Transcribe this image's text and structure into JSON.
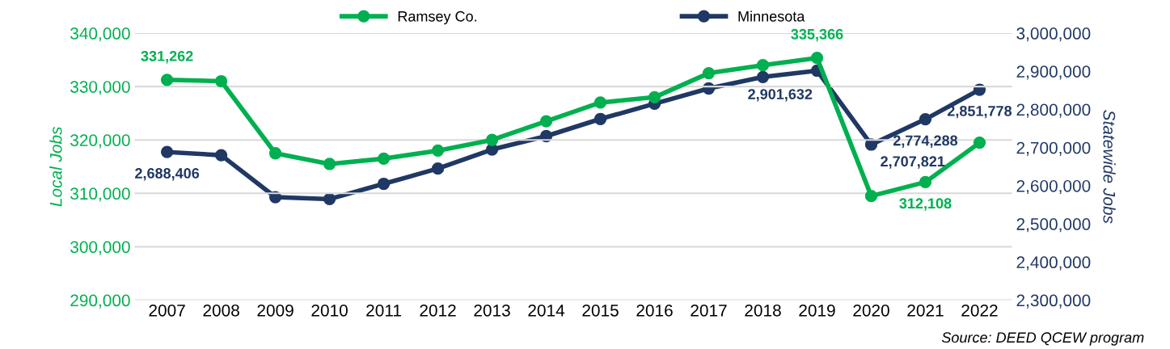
{
  "chart_data": {
    "type": "line",
    "categories": [
      "2007",
      "2008",
      "2009",
      "2010",
      "2011",
      "2012",
      "2013",
      "2014",
      "2015",
      "2016",
      "2017",
      "2018",
      "2019",
      "2020",
      "2021",
      "2022"
    ],
    "series": [
      {
        "name": "Ramsey Co.",
        "color": "#00b050",
        "values": [
          331262,
          331000,
          317500,
          315500,
          316500,
          318000,
          320000,
          323500,
          327000,
          328000,
          332500,
          334000,
          335366,
          309500,
          312108,
          319500
        ],
        "value_labels": [
          "331,262",
          null,
          null,
          null,
          null,
          null,
          null,
          null,
          null,
          null,
          null,
          null,
          "335,366",
          null,
          "312,108",
          null
        ]
      },
      {
        "name": "Minnesota",
        "color": "#203864",
        "axis": "y2",
        "values": [
          2688406,
          2680000,
          2570000,
          2565000,
          2605000,
          2645000,
          2695000,
          2730000,
          2775000,
          2815000,
          2855000,
          2885000,
          2901632,
          2707821,
          2774288,
          2851778
        ],
        "value_labels": [
          "2,688,406",
          null,
          null,
          null,
          null,
          null,
          null,
          null,
          null,
          null,
          null,
          null,
          "2,901,632",
          "2,707,821",
          "2,774,288",
          "2,851,778"
        ]
      }
    ],
    "ylabel": "Local Jobs",
    "y2label": "Statewide Jobs",
    "ylim": [
      290000,
      340000
    ],
    "yticks": [
      {
        "value": 290000,
        "label": "290,000"
      },
      {
        "value": 300000,
        "label": "300,000"
      },
      {
        "value": 310000,
        "label": "310,000"
      },
      {
        "value": 320000,
        "label": "320,000"
      },
      {
        "value": 330000,
        "label": "330,000"
      },
      {
        "value": 340000,
        "label": "340,000"
      }
    ],
    "y2lim": [
      2300000,
      3000000
    ],
    "y2ticks": [
      {
        "value": 2300000,
        "label": "2,300,000"
      },
      {
        "value": 2400000,
        "label": "2,400,000"
      },
      {
        "value": 2500000,
        "label": "2,500,000"
      },
      {
        "value": 2600000,
        "label": "2,600,000"
      },
      {
        "value": 2700000,
        "label": "2,700,000"
      },
      {
        "value": 2800000,
        "label": "2,800,000"
      },
      {
        "value": 2900000,
        "label": "2,900,000"
      },
      {
        "value": 3000000,
        "label": "3,000,000"
      }
    ],
    "grid": "y",
    "legend": "top",
    "marker": "circle",
    "line_style": "solid",
    "annotations": [
      "Source: DEED QCEW program"
    ]
  }
}
